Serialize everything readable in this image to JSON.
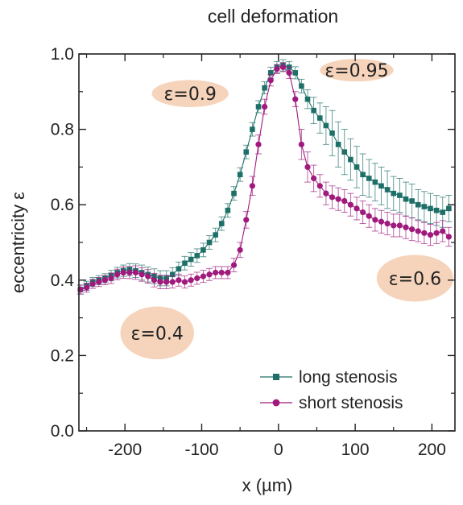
{
  "chart_data": {
    "type": "scatter",
    "title": "cell deformation",
    "xlabel": "x (µm)",
    "ylabel": "eccentricity ε",
    "xlim": [
      -260,
      230
    ],
    "ylim": [
      0.0,
      1.0
    ],
    "xticks": [
      -200,
      -100,
      0,
      100,
      200
    ],
    "yticks": [
      0.0,
      0.2,
      0.4,
      0.6,
      0.8,
      1.0
    ],
    "xtick_labels": [
      "-200",
      "-100",
      "0",
      "100",
      "200"
    ],
    "ytick_labels": [
      "0.0",
      "0.2",
      "0.4",
      "0.6",
      "0.8",
      "1.0"
    ],
    "grid": false,
    "legend_position": "bottom-right",
    "series": [
      {
        "name": "long stenosis",
        "color": "#1e6f68",
        "marker": "square",
        "points": [
          [
            -258,
            0.375
          ],
          [
            -250,
            0.385
          ],
          [
            -242,
            0.395
          ],
          [
            -234,
            0.4
          ],
          [
            -226,
            0.405
          ],
          [
            -218,
            0.412
          ],
          [
            -210,
            0.42
          ],
          [
            -202,
            0.425
          ],
          [
            -194,
            0.428
          ],
          [
            -186,
            0.425
          ],
          [
            -178,
            0.42
          ],
          [
            -170,
            0.415
          ],
          [
            -162,
            0.41
          ],
          [
            -154,
            0.405
          ],
          [
            -146,
            0.405
          ],
          [
            -138,
            0.415
          ],
          [
            -130,
            0.43
          ],
          [
            -122,
            0.445
          ],
          [
            -114,
            0.455
          ],
          [
            -106,
            0.465
          ],
          [
            -98,
            0.48
          ],
          [
            -90,
            0.5
          ],
          [
            -82,
            0.52
          ],
          [
            -74,
            0.55
          ],
          [
            -66,
            0.585
          ],
          [
            -58,
            0.63
          ],
          [
            -50,
            0.68
          ],
          [
            -42,
            0.74
          ],
          [
            -34,
            0.8
          ],
          [
            -26,
            0.86
          ],
          [
            -18,
            0.91
          ],
          [
            -10,
            0.95
          ],
          [
            -2,
            0.965
          ],
          [
            6,
            0.97
          ],
          [
            14,
            0.965
          ],
          [
            22,
            0.95
          ],
          [
            30,
            0.915
          ],
          [
            38,
            0.88
          ],
          [
            46,
            0.85
          ],
          [
            54,
            0.83
          ],
          [
            62,
            0.81
          ],
          [
            70,
            0.79
          ],
          [
            78,
            0.76
          ],
          [
            86,
            0.74
          ],
          [
            94,
            0.72
          ],
          [
            102,
            0.7
          ],
          [
            110,
            0.68
          ],
          [
            118,
            0.67
          ],
          [
            126,
            0.66
          ],
          [
            134,
            0.65
          ],
          [
            142,
            0.64
          ],
          [
            150,
            0.63
          ],
          [
            158,
            0.625
          ],
          [
            166,
            0.615
          ],
          [
            174,
            0.61
          ],
          [
            182,
            0.6
          ],
          [
            190,
            0.595
          ],
          [
            198,
            0.59
          ],
          [
            206,
            0.585
          ],
          [
            214,
            0.58
          ],
          [
            222,
            0.59
          ]
        ],
        "errors": [
          0.012,
          0.012,
          0.012,
          0.012,
          0.012,
          0.014,
          0.014,
          0.015,
          0.016,
          0.018,
          0.02,
          0.02,
          0.02,
          0.02,
          0.02,
          0.018,
          0.018,
          0.018,
          0.018,
          0.018,
          0.018,
          0.018,
          0.018,
          0.018,
          0.018,
          0.018,
          0.018,
          0.018,
          0.018,
          0.016,
          0.016,
          0.015,
          0.015,
          0.015,
          0.015,
          0.016,
          0.018,
          0.025,
          0.035,
          0.04,
          0.05,
          0.06,
          0.06,
          0.06,
          0.055,
          0.055,
          0.055,
          0.05,
          0.05,
          0.05,
          0.05,
          0.045,
          0.045,
          0.045,
          0.045,
          0.04,
          0.04,
          0.04,
          0.04,
          0.04,
          0.035
        ]
      },
      {
        "name": "short stenosis",
        "color": "#a01a7d",
        "marker": "circle",
        "points": [
          [
            -258,
            0.375
          ],
          [
            -250,
            0.38
          ],
          [
            -242,
            0.39
          ],
          [
            -234,
            0.395
          ],
          [
            -226,
            0.4
          ],
          [
            -218,
            0.405
          ],
          [
            -210,
            0.415
          ],
          [
            -202,
            0.42
          ],
          [
            -194,
            0.42
          ],
          [
            -186,
            0.42
          ],
          [
            -178,
            0.415
          ],
          [
            -170,
            0.41
          ],
          [
            -162,
            0.4
          ],
          [
            -154,
            0.395
          ],
          [
            -146,
            0.395
          ],
          [
            -138,
            0.395
          ],
          [
            -130,
            0.4
          ],
          [
            -122,
            0.395
          ],
          [
            -114,
            0.4
          ],
          [
            -106,
            0.405
          ],
          [
            -98,
            0.41
          ],
          [
            -90,
            0.415
          ],
          [
            -82,
            0.42
          ],
          [
            -74,
            0.42
          ],
          [
            -66,
            0.42
          ],
          [
            -58,
            0.44
          ],
          [
            -50,
            0.48
          ],
          [
            -42,
            0.56
          ],
          [
            -34,
            0.65
          ],
          [
            -26,
            0.76
          ],
          [
            -18,
            0.86
          ],
          [
            -10,
            0.93
          ],
          [
            -2,
            0.96
          ],
          [
            6,
            0.965
          ],
          [
            14,
            0.95
          ],
          [
            22,
            0.88
          ],
          [
            30,
            0.76
          ],
          [
            38,
            0.7
          ],
          [
            46,
            0.67
          ],
          [
            54,
            0.65
          ],
          [
            62,
            0.63
          ],
          [
            70,
            0.62
          ],
          [
            78,
            0.615
          ],
          [
            86,
            0.61
          ],
          [
            94,
            0.6
          ],
          [
            102,
            0.59
          ],
          [
            110,
            0.58
          ],
          [
            118,
            0.57
          ],
          [
            126,
            0.56
          ],
          [
            134,
            0.555
          ],
          [
            142,
            0.55
          ],
          [
            150,
            0.545
          ],
          [
            158,
            0.545
          ],
          [
            166,
            0.54
          ],
          [
            174,
            0.535
          ],
          [
            182,
            0.53
          ],
          [
            190,
            0.525
          ],
          [
            198,
            0.52
          ],
          [
            206,
            0.525
          ],
          [
            214,
            0.53
          ],
          [
            222,
            0.515
          ]
        ],
        "errors": [
          0.012,
          0.012,
          0.012,
          0.012,
          0.012,
          0.014,
          0.014,
          0.015,
          0.016,
          0.018,
          0.018,
          0.018,
          0.018,
          0.018,
          0.018,
          0.016,
          0.016,
          0.016,
          0.016,
          0.016,
          0.016,
          0.016,
          0.016,
          0.016,
          0.016,
          0.018,
          0.02,
          0.022,
          0.025,
          0.025,
          0.02,
          0.015,
          0.012,
          0.012,
          0.015,
          0.02,
          0.04,
          0.04,
          0.035,
          0.03,
          0.03,
          0.03,
          0.03,
          0.03,
          0.03,
          0.03,
          0.03,
          0.03,
          0.03,
          0.03,
          0.03,
          0.03,
          0.03,
          0.03,
          0.03,
          0.028,
          0.028,
          0.028,
          0.028,
          0.028,
          0.025
        ]
      }
    ],
    "annotations": [
      {
        "text": "ε=0.9",
        "x": -115,
        "y": 0.895,
        "rx_data": 50,
        "ry_data": 0.036
      },
      {
        "text": "ε=0.95",
        "x": 102,
        "y": 0.957,
        "rx_data": 48,
        "ry_data": 0.03
      },
      {
        "text": "ε=0.6",
        "x": 178,
        "y": 0.405,
        "rx_data": 50,
        "ry_data": 0.062
      },
      {
        "text": "ε=0.4",
        "x": -158,
        "y": 0.26,
        "rx_data": 48,
        "ry_data": 0.07
      }
    ],
    "annotation_fill": "#f5d4bb"
  }
}
